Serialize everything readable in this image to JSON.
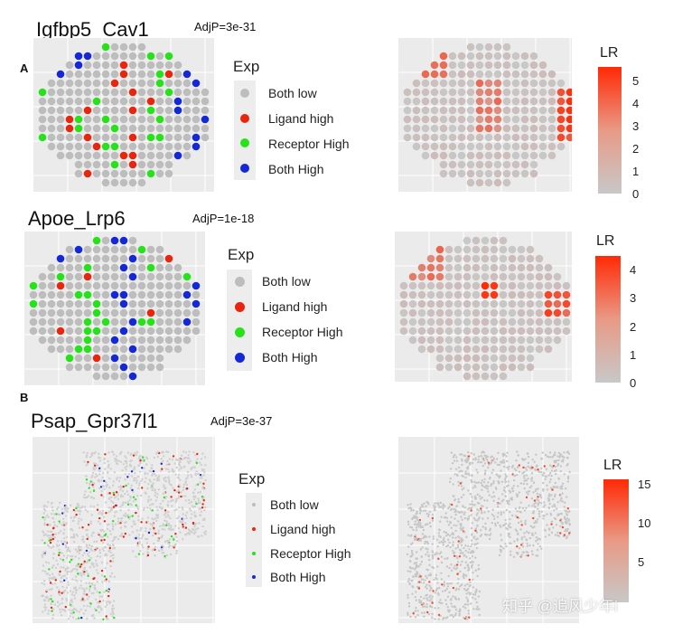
{
  "panel_labels": {
    "a": "A",
    "b": "B"
  },
  "legend": {
    "exp_title": "Exp",
    "categories": [
      "Both low",
      "Ligand high",
      "Receptor High",
      "Both High"
    ],
    "colors": {
      "Both low": "#bdbdbd",
      "Ligand high": "#e8250e",
      "Receptor High": "#27e21b",
      "Both High": "#1428d8"
    }
  },
  "lr_title": "LR",
  "lr_colors": {
    "low": "#c8c8c8",
    "high": "#ff2a05"
  },
  "chart_data": [
    {
      "type": "scatter",
      "title": "Igfbp5_Cav1",
      "annotation": "AdjP=3e-31",
      "legend_title": "Exp",
      "left_plot": "spatial spots colored by expression category",
      "right_plot": "spatial spots colored by LR score",
      "colorbar": {
        "title": "LR",
        "ticks": [
          0,
          1,
          2,
          3,
          4,
          5
        ],
        "range": [
          0,
          5.6
        ]
      }
    },
    {
      "type": "scatter",
      "title": "Apoe_Lrp6",
      "annotation": "AdjP=1e-18",
      "legend_title": "Exp",
      "colorbar": {
        "title": "LR",
        "ticks": [
          0,
          1,
          2,
          3,
          4
        ],
        "range": [
          0,
          4.6
        ]
      }
    },
    {
      "type": "scatter",
      "title": "Psap_Gpr37l1",
      "annotation": "AdjP=3e-37",
      "legend_title": "Exp",
      "colorbar": {
        "title": "LR",
        "ticks": [
          5,
          10,
          15
        ],
        "range": [
          0,
          15.5
        ]
      }
    }
  ],
  "watermark": "知乎 @追风少年i"
}
